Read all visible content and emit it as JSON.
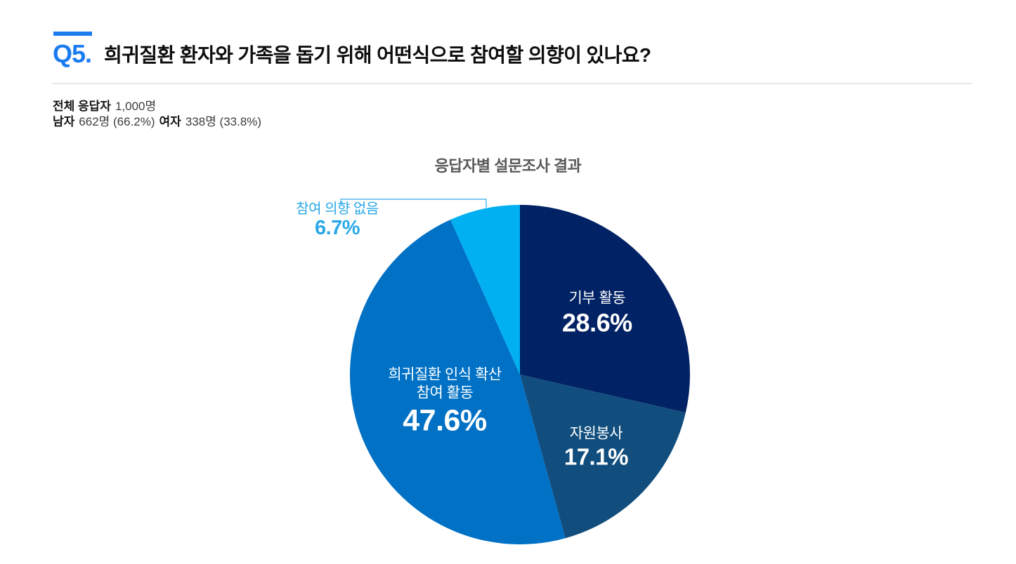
{
  "header": {
    "question_number": "Q5.",
    "title": "희귀질환 환자와 가족을 돕기 위해 어떤식으로 참여할 의향이 있나요?",
    "accent_color": "#1b7cf0"
  },
  "respondents": {
    "total_label": "전체 응답자",
    "total_value": "1,000명",
    "male_label": "남자",
    "male_value": "662명 (66.2%)",
    "female_label": "여자",
    "female_value": "338명 (33.8%)"
  },
  "chart_data": {
    "type": "pie",
    "title": "응답자별 설문조사 결과",
    "unit": "%",
    "total": 100,
    "start_angle_deg": 0,
    "direction": "clockwise",
    "legend": "none",
    "label_text_color": "#ffffff",
    "slices": [
      {
        "label": "기부 활동",
        "value": 28.6,
        "display_value": "28.6%",
        "color": "#012264",
        "label_position": "inside",
        "label_r_frac": 0.58
      },
      {
        "label": "자원봉사",
        "value": 17.1,
        "display_value": "17.1%",
        "color": "#114e7e",
        "label_position": "inside",
        "label_r_frac": 0.62
      },
      {
        "label": "희귀질환 인식 확산\n참여 활동",
        "value": 47.6,
        "display_value": "47.6%",
        "color": "#0071c5",
        "label_position": "inside",
        "label_r_frac": 0.47
      },
      {
        "label": "참여 의향 없음",
        "value": 6.7,
        "display_value": "6.7%",
        "color": "#00b0f0",
        "label_position": "outside",
        "label_color": "#2aa9e6",
        "leader_color": "#55b7ec"
      }
    ]
  }
}
